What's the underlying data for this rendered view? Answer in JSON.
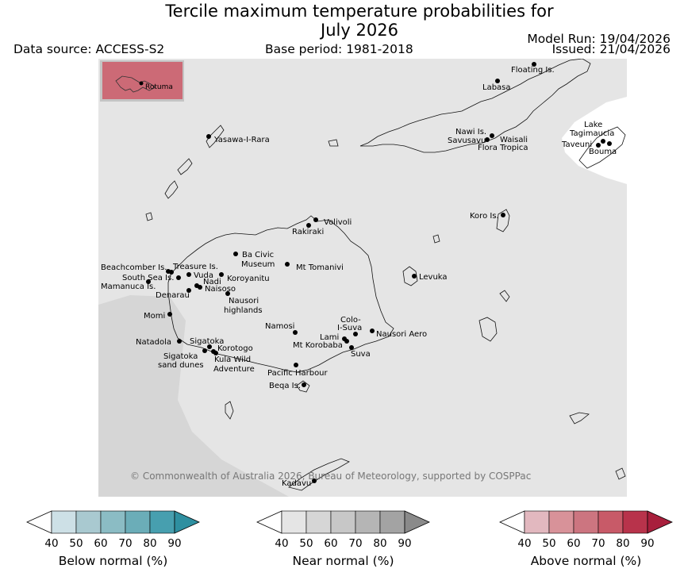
{
  "title_line1": "Tercile maximum temperature probabilities for",
  "title_line2": "July 2026",
  "data_source": "Data source: ACCESS-S2",
  "base_period": "Base period: 1981-2018",
  "model_run": "Model Run: 19/04/2026",
  "issued": "Issued: 21/04/2026",
  "copyright": "© Commonwealth of Australia 2026, Bureau of Meteorology, supported by COSPPac",
  "inset_label": "Rotuma",
  "places": [
    {
      "id": "floating-is",
      "label": "Floating Is."
    },
    {
      "id": "labasa",
      "label": "Labasa"
    },
    {
      "id": "yasawa",
      "label": "Yasawa-I-Rara"
    },
    {
      "id": "nawi",
      "label": "Nawi Is."
    },
    {
      "id": "savusavu",
      "label": "Savusavu"
    },
    {
      "id": "waisali",
      "label": "Waisali"
    },
    {
      "id": "flora",
      "label": "Flora Tropica"
    },
    {
      "id": "lake-tag1",
      "label": "Lake"
    },
    {
      "id": "lake-tag2",
      "label": "Tagimaucia"
    },
    {
      "id": "taveuni",
      "label": "Taveuni"
    },
    {
      "id": "bouma",
      "label": "Bouma"
    },
    {
      "id": "koro",
      "label": "Koro Is."
    },
    {
      "id": "volivoli",
      "label": "Volivoli"
    },
    {
      "id": "rakiraki",
      "label": "Rakiraki"
    },
    {
      "id": "ba-civic1",
      "label": "Ba Civic"
    },
    {
      "id": "ba-civic2",
      "label": "Museum"
    },
    {
      "id": "mt-tomanivi",
      "label": "Mt Tomanivi"
    },
    {
      "id": "beachcomber",
      "label": "Beachcomber Is."
    },
    {
      "id": "treasure",
      "label": "Treasure Is."
    },
    {
      "id": "vuda",
      "label": "Vuda"
    },
    {
      "id": "south-sea",
      "label": "South Sea Is."
    },
    {
      "id": "nadi",
      "label": "Nadi"
    },
    {
      "id": "koroyanitu",
      "label": "Koroyanitu"
    },
    {
      "id": "mamanuca",
      "label": "Mamanuca Is."
    },
    {
      "id": "naisoso",
      "label": "Naisoso"
    },
    {
      "id": "denarau",
      "label": "Denarau"
    },
    {
      "id": "nausori-h1",
      "label": "Nausori"
    },
    {
      "id": "nausori-h2",
      "label": "highlands"
    },
    {
      "id": "levuka",
      "label": "Levuka"
    },
    {
      "id": "momi",
      "label": "Momi"
    },
    {
      "id": "namosi",
      "label": "Namosi"
    },
    {
      "id": "colo1",
      "label": "Colo-"
    },
    {
      "id": "colo2",
      "label": "I-Suva"
    },
    {
      "id": "nausori-aero",
      "label": "Nausori Aero"
    },
    {
      "id": "lami",
      "label": "Lami"
    },
    {
      "id": "mt-korobaba",
      "label": "Mt Korobaba"
    },
    {
      "id": "suva",
      "label": "Suva"
    },
    {
      "id": "natadola",
      "label": "Natadola"
    },
    {
      "id": "sigatoka",
      "label": "Sigatoka"
    },
    {
      "id": "korotogo",
      "label": "Korotogo"
    },
    {
      "id": "sig-dunes1",
      "label": "Sigatoka"
    },
    {
      "id": "sig-dunes2",
      "label": "sand dunes"
    },
    {
      "id": "kula1",
      "label": "Kula Wild"
    },
    {
      "id": "kula2",
      "label": "Adventure"
    },
    {
      "id": "pacific-harbour",
      "label": "Pacific Harbour"
    },
    {
      "id": "beqa",
      "label": "Beqa Is."
    },
    {
      "id": "kadavu",
      "label": "Kadavu"
    }
  ],
  "colorbars": [
    {
      "id": "below",
      "title": "Below normal (%)",
      "ticks": [
        "40",
        "50",
        "60",
        "70",
        "80",
        "90"
      ],
      "colors": [
        "#cde0e6",
        "#a9c9d0",
        "#8bbcc4",
        "#6badb8",
        "#479faf",
        "#2e8fa0"
      ]
    },
    {
      "id": "near",
      "title": "Near normal (%)",
      "ticks": [
        "40",
        "50",
        "60",
        "70",
        "80",
        "90"
      ],
      "colors": [
        "#e5e5e5",
        "#d6d6d6",
        "#c7c7c7",
        "#b5b5b5",
        "#a3a3a3",
        "#8a8a8a"
      ]
    },
    {
      "id": "above",
      "title": "Above normal (%)",
      "ticks": [
        "40",
        "50",
        "60",
        "70",
        "80",
        "90"
      ],
      "colors": [
        "#e2b8bf",
        "#d89299",
        "#cc7580",
        "#c85a68",
        "#b8334b",
        "#a81f3c"
      ]
    }
  ],
  "map_colors": {
    "near_40": "#e5e5e5",
    "near_50": "#d6d6d6",
    "above_60": "#cc6a76",
    "land_outline": "#111111"
  }
}
